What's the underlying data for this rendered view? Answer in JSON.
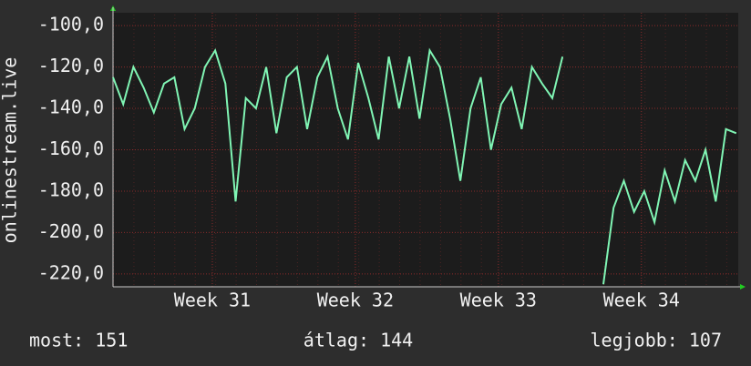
{
  "chart_data": {
    "type": "line",
    "y_label": "onlinestream.live",
    "xlim": [
      0,
      30.6
    ],
    "xticks": [
      {
        "value": 4.86,
        "label": "Week 31"
      },
      {
        "value": 11.86,
        "label": "Week 32"
      },
      {
        "value": 18.86,
        "label": "Week 33"
      },
      {
        "value": 25.86,
        "label": "Week 34"
      }
    ],
    "ylim": [
      -226.2,
      -93.8
    ],
    "yticks": [
      {
        "value": -100,
        "label": "-100,0"
      },
      {
        "value": -120,
        "label": "-120,0"
      },
      {
        "value": -140,
        "label": "-140,0"
      },
      {
        "value": -160,
        "label": "-160,0"
      },
      {
        "value": -180,
        "label": "-180,0"
      },
      {
        "value": -200,
        "label": "-200,0"
      },
      {
        "value": -220,
        "label": "-220,0"
      }
    ],
    "grid": true,
    "x": [
      0,
      0.5,
      1,
      1.5,
      2,
      2.5,
      3,
      3.5,
      4,
      4.5,
      5,
      5.5,
      6,
      6.5,
      7,
      7.5,
      8,
      8.5,
      9,
      9.5,
      10,
      10.5,
      11,
      11.5,
      12,
      12.5,
      13,
      13.5,
      14,
      14.5,
      15,
      15.5,
      16,
      16.5,
      17,
      17.5,
      18,
      18.5,
      19,
      19.5,
      20,
      20.5,
      21,
      21.5,
      22,
      22.5,
      23,
      23.5,
      24,
      24.5,
      25,
      25.5,
      26,
      26.5,
      27,
      27.5,
      28,
      28.5,
      29,
      29.5,
      30,
      30.5
    ],
    "series": [
      {
        "color": "#80f5b4",
        "values": [
          -125,
          -138,
          -120,
          -130,
          -142,
          -128,
          -125,
          -150,
          -140,
          -120,
          -112,
          -128,
          -185,
          -135,
          -140,
          -120,
          -152,
          -125,
          -120,
          -150,
          -125,
          -115,
          -140,
          -155,
          -118,
          -135,
          -155,
          -115,
          -140,
          -115,
          -145,
          -112,
          -120,
          -145,
          -175,
          -140,
          -125,
          -160,
          -138,
          -130,
          -150,
          -120,
          -128,
          -135,
          -115,
          null,
          null,
          null,
          -225,
          -188,
          -175,
          -190,
          -180,
          -195,
          -170,
          -185,
          -165,
          -175,
          -160,
          -185,
          -150,
          -152
        ]
      }
    ],
    "footer": [
      "most: 151",
      "átlag: 144",
      "legjobb: 107"
    ]
  }
}
